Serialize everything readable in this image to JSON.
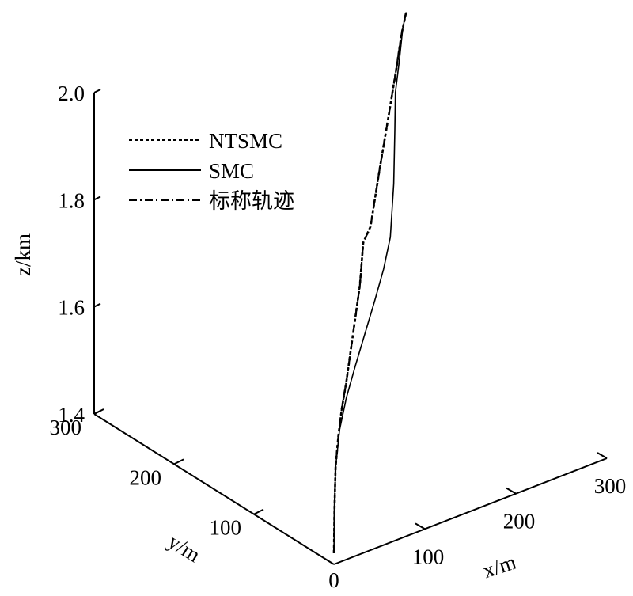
{
  "chart_data": {
    "type": "line",
    "projection": "3d",
    "xlabel": "x/m",
    "ylabel": "y/m",
    "zlabel": "z/km",
    "xlim": [
      0,
      300
    ],
    "ylim": [
      0,
      300
    ],
    "zlim": [
      1.4,
      2.0
    ],
    "x_ticks": [
      "100",
      "200",
      "300"
    ],
    "y_ticks": [
      "100",
      "200",
      "300"
    ],
    "z_ticks": [
      "1.4",
      "1.6",
      "1.8",
      "2.0"
    ],
    "origin_label": "0",
    "legend_position": "top-left",
    "grid": false,
    "series": [
      {
        "name": "NTSMC",
        "style": "dashed",
        "points": [
          {
            "x": 0,
            "y": 0,
            "z": 1.14
          },
          {
            "x": 1,
            "y": 1,
            "z": 1.22
          },
          {
            "x": 3,
            "y": 3,
            "z": 1.3
          },
          {
            "x": 8,
            "y": 8,
            "z": 1.36
          },
          {
            "x": 14,
            "y": 14,
            "z": 1.41
          },
          {
            "x": 22,
            "y": 22,
            "z": 1.46
          },
          {
            "x": 30,
            "y": 30,
            "z": 1.52
          },
          {
            "x": 38,
            "y": 38,
            "z": 1.58
          },
          {
            "x": 46,
            "y": 46,
            "z": 1.64
          },
          {
            "x": 52,
            "y": 52,
            "z": 1.72
          },
          {
            "x": 65,
            "y": 65,
            "z": 1.75
          },
          {
            "x": 80,
            "y": 80,
            "z": 1.85
          },
          {
            "x": 96,
            "y": 96,
            "z": 1.95
          },
          {
            "x": 110,
            "y": 110,
            "z": 2.04
          },
          {
            "x": 120,
            "y": 120,
            "z": 2.11
          },
          {
            "x": 128,
            "y": 128,
            "z": 2.15
          }
        ]
      },
      {
        "name": "SMC",
        "style": "solid",
        "points": [
          {
            "x": 0,
            "y": 0,
            "z": 1.14
          },
          {
            "x": 1,
            "y": 1,
            "z": 1.22
          },
          {
            "x": 3,
            "y": 3,
            "z": 1.3
          },
          {
            "x": 10,
            "y": 10,
            "z": 1.37
          },
          {
            "x": 22,
            "y": 22,
            "z": 1.43
          },
          {
            "x": 38,
            "y": 38,
            "z": 1.49
          },
          {
            "x": 55,
            "y": 55,
            "z": 1.55
          },
          {
            "x": 72,
            "y": 72,
            "z": 1.61
          },
          {
            "x": 88,
            "y": 88,
            "z": 1.67
          },
          {
            "x": 100,
            "y": 100,
            "z": 1.73
          },
          {
            "x": 106,
            "y": 106,
            "z": 1.83
          },
          {
            "x": 108,
            "y": 108,
            "z": 1.93
          },
          {
            "x": 109,
            "y": 109,
            "z": 2.0
          },
          {
            "x": 116,
            "y": 116,
            "z": 2.06
          },
          {
            "x": 122,
            "y": 122,
            "z": 2.12
          },
          {
            "x": 128,
            "y": 128,
            "z": 2.15
          }
        ]
      },
      {
        "name": "标称轨迹",
        "style": "dash-dot",
        "points": [
          {
            "x": 0,
            "y": 0,
            "z": 1.14
          },
          {
            "x": 1,
            "y": 1,
            "z": 1.22
          },
          {
            "x": 3,
            "y": 3,
            "z": 1.3
          },
          {
            "x": 8,
            "y": 8,
            "z": 1.36
          },
          {
            "x": 14,
            "y": 14,
            "z": 1.41
          },
          {
            "x": 22,
            "y": 22,
            "z": 1.46
          },
          {
            "x": 30,
            "y": 30,
            "z": 1.52
          },
          {
            "x": 38,
            "y": 38,
            "z": 1.58
          },
          {
            "x": 46,
            "y": 46,
            "z": 1.64
          },
          {
            "x": 52,
            "y": 52,
            "z": 1.72
          },
          {
            "x": 65,
            "y": 65,
            "z": 1.75
          },
          {
            "x": 80,
            "y": 80,
            "z": 1.85
          },
          {
            "x": 96,
            "y": 96,
            "z": 1.95
          },
          {
            "x": 110,
            "y": 110,
            "z": 2.04
          },
          {
            "x": 120,
            "y": 120,
            "z": 2.11
          },
          {
            "x": 128,
            "y": 128,
            "z": 2.15
          }
        ]
      }
    ]
  }
}
